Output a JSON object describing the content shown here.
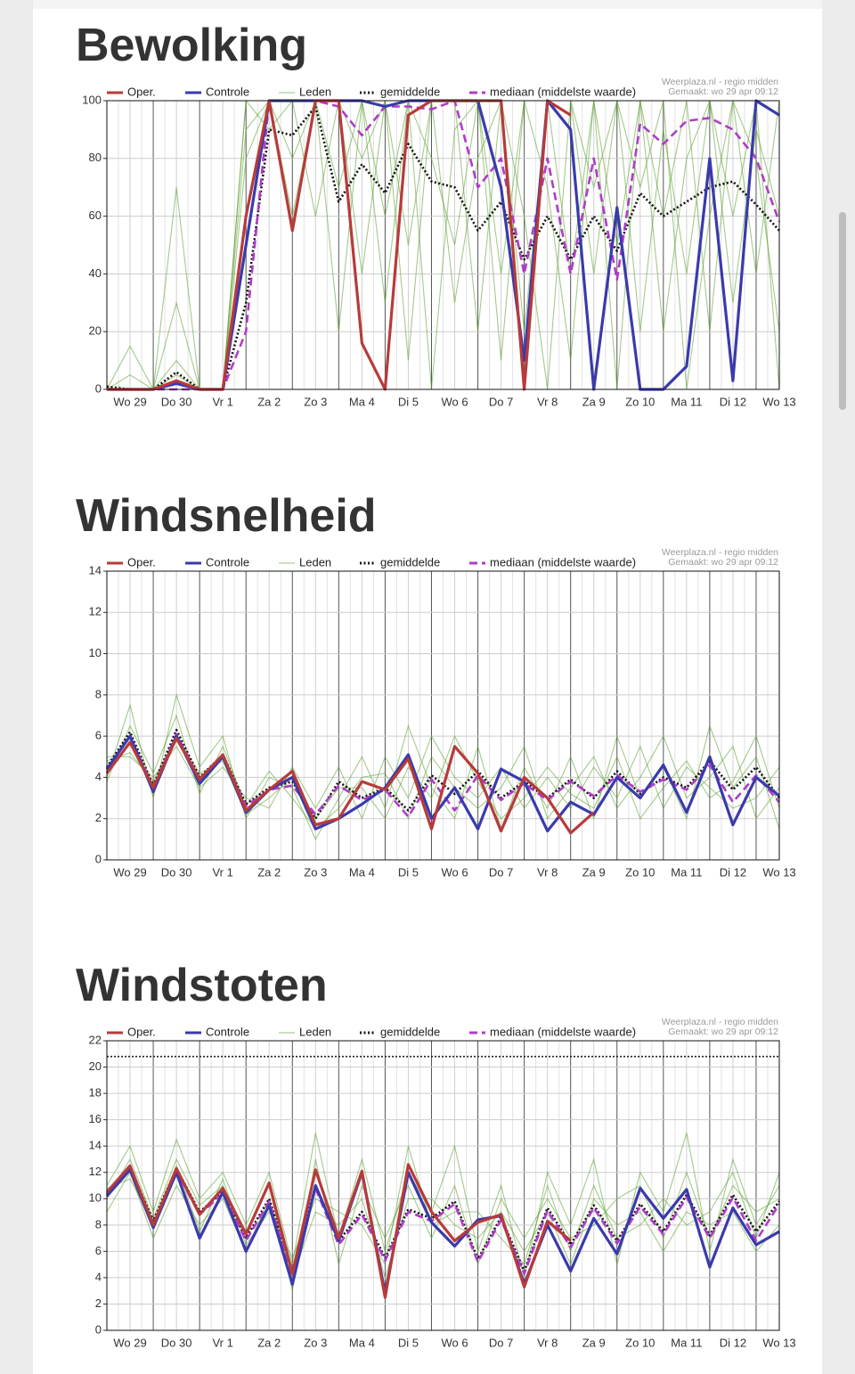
{
  "chart_data": [
    {
      "type": "line",
      "title": "Bewolking",
      "credit": [
        "Weerplaza.nl - regio midden",
        "Gemaakt: wo 29 apr 09:12"
      ],
      "categories": [
        null,
        "Wo 29",
        null,
        "Do 30",
        null,
        "Vr 1",
        null,
        "Za 2",
        null,
        "Zo 3",
        null,
        "Ma 4",
        null,
        "Di 5",
        null,
        "Wo 6",
        null,
        "Do 7",
        null,
        "Vr 8",
        null,
        "Za 9",
        null,
        "Zo 10",
        null,
        "Ma 11",
        null,
        "Di 12",
        null,
        "Wo 13"
      ],
      "ylim": [
        0,
        100
      ],
      "yticks": [
        0,
        20,
        40,
        60,
        80,
        100
      ],
      "grid": true,
      "series": [
        {
          "name": "Oper.",
          "color": "#b83a3a",
          "style": "solid",
          "values": [
            0,
            0,
            0,
            3,
            0,
            0,
            60,
            100,
            55,
            100,
            100,
            16,
            0,
            95,
            100,
            100,
            100,
            100,
            0,
            100,
            95,
            null,
            null,
            null,
            null,
            null,
            null,
            null,
            null,
            null
          ]
        },
        {
          "name": "Controle",
          "color": "#3a3aac",
          "style": "solid",
          "values": [
            0,
            0,
            0,
            2,
            0,
            0,
            50,
            100,
            100,
            100,
            100,
            100,
            98,
            100,
            100,
            100,
            100,
            70,
            10,
            100,
            90,
            0,
            63,
            0,
            0,
            8,
            80,
            3,
            100,
            95
          ]
        },
        {
          "name": "Leden",
          "color": "#5a9e2c",
          "style": "thin",
          "members": [
            [
              0,
              5,
              0,
              30,
              0,
              0,
              100,
              100,
              80,
              100,
              20,
              100,
              60,
              100,
              0,
              90,
              100,
              40,
              100,
              70,
              10,
              100,
              50,
              100,
              20,
              80,
              100,
              30,
              90,
              60
            ],
            [
              0,
              0,
              0,
              10,
              0,
              0,
              80,
              100,
              100,
              60,
              100,
              40,
              100,
              10,
              100,
              100,
              20,
              100,
              60,
              0,
              100,
              40,
              100,
              70,
              100,
              0,
              60,
              100,
              40,
              100
            ],
            [
              0,
              0,
              0,
              70,
              0,
              0,
              100,
              90,
              100,
              100,
              70,
              100,
              30,
              100,
              80,
              50,
              100,
              10,
              100,
              100,
              40,
              100,
              0,
              100,
              60,
              100,
              20,
              100,
              80,
              20
            ],
            [
              0,
              15,
              0,
              5,
              0,
              0,
              90,
              100,
              60,
              100,
              100,
              80,
              100,
              50,
              100,
              30,
              80,
              100,
              20,
              100,
              100,
              70,
              100,
              20,
              90,
              40,
              100,
              60,
              100,
              0
            ]
          ]
        },
        {
          "name": "gemiddelde",
          "color": "#111111",
          "style": "dotted",
          "values": [
            1,
            0,
            0,
            6,
            0,
            0,
            30,
            90,
            88,
            98,
            65,
            78,
            68,
            85,
            72,
            70,
            55,
            65,
            45,
            60,
            45,
            60,
            48,
            68,
            60,
            65,
            70,
            72,
            64,
            55
          ]
        },
        {
          "name": "mediaan (middelste waarde)",
          "color": "#b03cc8",
          "style": "dashed",
          "values": [
            0,
            0,
            0,
            0,
            0,
            0,
            20,
            100,
            100,
            100,
            98,
            88,
            98,
            98,
            97,
            100,
            70,
            80,
            40,
            80,
            40,
            80,
            38,
            92,
            85,
            93,
            94,
            90,
            80,
            58
          ]
        }
      ]
    },
    {
      "type": "line",
      "title": "Windsnelheid",
      "credit": [
        "Weerplaza.nl - regio midden",
        "Gemaakt: wo 29 apr 09:12"
      ],
      "categories": [
        null,
        "Wo 29",
        null,
        "Do 30",
        null,
        "Vr 1",
        null,
        "Za 2",
        null,
        "Zo 3",
        null,
        "Ma 4",
        null,
        "Di 5",
        null,
        "Wo 6",
        null,
        "Do 7",
        null,
        "Vr 8",
        null,
        "Za 9",
        null,
        "Zo 10",
        null,
        "Ma 11",
        null,
        "Di 12",
        null,
        "Wo 13"
      ],
      "ylim": [
        0,
        14
      ],
      "yticks": [
        0,
        2,
        4,
        6,
        8,
        10,
        12,
        14
      ],
      "grid": true,
      "series": [
        {
          "name": "Oper.",
          "color": "#b83a3a",
          "style": "solid",
          "values": [
            4.2,
            5.7,
            3.5,
            5.9,
            3.9,
            5.1,
            2.4,
            3.4,
            4.3,
            1.7,
            2.0,
            3.8,
            3.4,
            4.9,
            1.5,
            5.5,
            4.2,
            1.4,
            4.0,
            3.0,
            1.3,
            2.3,
            null,
            null,
            null,
            null,
            null,
            null,
            null,
            null
          ]
        },
        {
          "name": "Controle",
          "color": "#3a3aac",
          "style": "solid",
          "values": [
            4.4,
            6.0,
            3.3,
            6.0,
            3.7,
            5.0,
            2.3,
            3.4,
            4.0,
            1.5,
            2.0,
            2.7,
            3.5,
            5.1,
            2.0,
            3.5,
            1.5,
            4.4,
            3.8,
            1.4,
            2.8,
            2.2,
            4.0,
            3.0,
            4.6,
            2.3,
            5.0,
            1.7,
            4.0,
            3.1
          ]
        },
        {
          "name": "Leden",
          "color": "#5a9e2c",
          "style": "thin",
          "members": [
            [
              4.0,
              7.5,
              3.0,
              8.0,
              4.5,
              6.0,
              2.0,
              4.0,
              3.5,
              1.0,
              3.0,
              5.0,
              2.5,
              6.5,
              3.5,
              2.0,
              5.5,
              1.5,
              4.5,
              2.5,
              5.0,
              2.0,
              6.0,
              3.0,
              4.5,
              2.0,
              6.5,
              3.5,
              5.0,
              1.5
            ],
            [
              5.0,
              5.0,
              4.0,
              5.5,
              3.5,
              4.5,
              3.0,
              2.5,
              4.5,
              2.5,
              4.5,
              2.0,
              5.0,
              3.0,
              6.0,
              4.0,
              3.0,
              4.5,
              2.5,
              4.0,
              2.5,
              4.5,
              3.0,
              5.5,
              2.5,
              4.5,
              3.5,
              2.5,
              3.0,
              4.5
            ],
            [
              3.8,
              6.5,
              4.2,
              7.0,
              3.2,
              5.5,
              2.6,
              4.3,
              3.0,
              1.5,
              2.5,
              4.0,
              4.2,
              2.0,
              5.0,
              3.5,
              2.5,
              3.5,
              5.5,
              2.0,
              3.5,
              5.0,
              2.5,
              4.0,
              6.0,
              3.0,
              4.0,
              5.5,
              2.0,
              3.5
            ],
            [
              4.8,
              5.2,
              3.8,
              6.0,
              4.2,
              4.8,
              2.2,
              3.0,
              4.0,
              2.0,
              3.5,
              3.5,
              2.0,
              4.5,
              3.0,
              6.0,
              3.8,
              2.0,
              3.0,
              4.5,
              3.2,
              2.5,
              5.0,
              2.0,
              3.5,
              4.8,
              3.0,
              3.8,
              6.0,
              2.5
            ]
          ]
        },
        {
          "name": "gemiddelde",
          "color": "#111111",
          "style": "dotted",
          "values": [
            4.5,
            6.2,
            3.6,
            6.3,
            4.0,
            5.1,
            2.7,
            3.5,
            3.8,
            2.0,
            3.8,
            3.0,
            3.5,
            2.4,
            4.1,
            3.2,
            4.3,
            3.0,
            3.8,
            3.0,
            3.9,
            3.0,
            4.3,
            3.2,
            4.0,
            3.5,
            4.8,
            3.4,
            4.5,
            3.0
          ]
        },
        {
          "name": "mediaan (middelste waarde)",
          "color": "#b03cc8",
          "style": "dashed",
          "values": [
            4.4,
            6.0,
            3.5,
            6.1,
            3.9,
            5.0,
            2.6,
            3.4,
            3.6,
            2.2,
            3.6,
            2.9,
            3.4,
            2.1,
            3.9,
            2.4,
            4.1,
            2.9,
            3.7,
            2.9,
            3.8,
            3.1,
            4.1,
            3.3,
            3.9,
            3.4,
            4.6,
            2.8,
            4.1,
            2.8
          ]
        }
      ]
    },
    {
      "type": "line",
      "title": "Windstoten",
      "credit": [
        "Weerplaza.nl - regio midden",
        "Gemaakt: wo 29 apr 09:12"
      ],
      "categories": [
        null,
        "Wo 29",
        null,
        "Do 30",
        null,
        "Vr 1",
        null,
        "Za 2",
        null,
        "Zo 3",
        null,
        "Ma 4",
        null,
        "Di 5",
        null,
        "Wo 6",
        null,
        "Do 7",
        null,
        "Vr 8",
        null,
        "Za 9",
        null,
        "Zo 10",
        null,
        "Ma 11",
        null,
        "Di 12",
        null,
        "Wo 13"
      ],
      "ylim": [
        0,
        22
      ],
      "yticks": [
        0,
        2,
        4,
        6,
        8,
        10,
        12,
        14,
        16,
        18,
        20,
        22
      ],
      "grid": true,
      "reference_line": 20.8,
      "series": [
        {
          "name": "Oper.",
          "color": "#b83a3a",
          "style": "solid",
          "values": [
            10.5,
            12.5,
            8.0,
            12.3,
            8.8,
            10.8,
            7.3,
            11.2,
            4.3,
            12.2,
            7.0,
            12.1,
            2.5,
            12.6,
            9.0,
            6.8,
            8.2,
            8.8,
            3.3,
            8.3,
            6.8,
            null,
            null,
            null,
            null,
            null,
            null,
            null,
            null,
            null
          ]
        },
        {
          "name": "Controle",
          "color": "#3a3aac",
          "style": "solid",
          "values": [
            10.2,
            12.2,
            7.8,
            12.0,
            7.0,
            10.5,
            6.0,
            9.5,
            3.5,
            11.0,
            6.8,
            12.0,
            2.8,
            12.0,
            8.2,
            6.4,
            8.4,
            8.7,
            3.5,
            8.0,
            4.5,
            8.5,
            5.8,
            10.8,
            8.5,
            10.7,
            4.8,
            9.3,
            6.5,
            7.5
          ]
        },
        {
          "name": "Leden",
          "color": "#5a9e2c",
          "style": "thin",
          "members": [
            [
              11,
              14,
              9,
              14.5,
              10,
              12,
              8,
              12,
              5,
              15,
              7,
              13,
              6,
              12,
              9,
              14,
              6,
              11,
              4,
              12,
              8,
              13,
              5,
              12,
              9,
              15,
              6,
              13,
              8,
              11
            ],
            [
              9,
              12,
              7,
              11,
              8,
              10,
              6,
              10,
              4,
              9,
              8,
              10,
              4,
              10,
              10,
              8,
              7,
              9,
              6,
              9,
              5,
              10,
              8,
              9,
              6,
              9,
              8,
              9,
              6,
              8
            ],
            [
              10,
              13,
              8.5,
              13,
              9.5,
              11,
              7.5,
              11,
              3,
              13,
              5,
              11,
              7,
              11,
              7,
              11,
              5,
              10,
              7,
              10,
              7,
              8,
              10,
              11,
              7,
              12,
              7,
              11,
              9,
              10
            ],
            [
              10.8,
              11.5,
              8.2,
              12.5,
              7.5,
              11.5,
              6.5,
              9,
              5.5,
              10,
              9,
              8,
              5,
              14,
              8,
              9,
              9,
              7,
              5,
              11,
              6,
              11,
              7,
              8,
              10,
              8,
              9,
              12,
              7,
              12
            ]
          ]
        },
        {
          "name": "gemiddelde",
          "color": "#111111",
          "style": "dotted",
          "values": [
            10.4,
            12.4,
            8.3,
            12.3,
            9.0,
            10.5,
            7.0,
            10.0,
            4.5,
            11.0,
            6.8,
            9.0,
            5.5,
            9.2,
            8.5,
            9.8,
            5.4,
            8.6,
            4.5,
            9.3,
            6.5,
            9.5,
            6.8,
            9.6,
            7.5,
            10.3,
            7.2,
            10.3,
            7.5,
            9.8
          ]
        },
        {
          "name": "mediaan (middelste waarde)",
          "color": "#b03cc8",
          "style": "dashed",
          "values": [
            10.3,
            12.3,
            8.1,
            12.1,
            8.8,
            10.4,
            6.8,
            9.8,
            4.2,
            10.8,
            6.5,
            8.8,
            5.3,
            9.0,
            8.3,
            9.6,
            5.2,
            8.4,
            4.3,
            9.1,
            6.3,
            9.3,
            6.6,
            9.4,
            7.3,
            10.1,
            7.0,
            10.1,
            6.8,
            9.6
          ]
        }
      ]
    }
  ]
}
